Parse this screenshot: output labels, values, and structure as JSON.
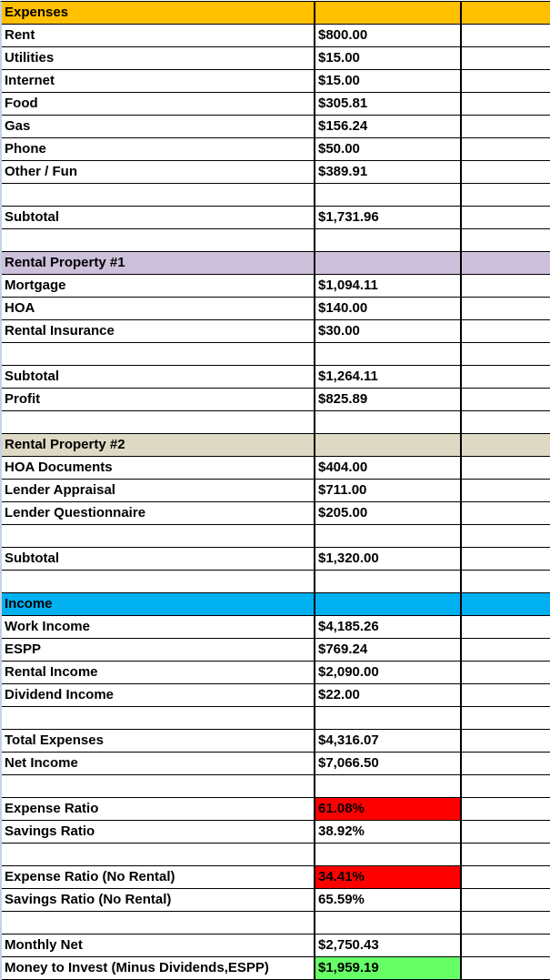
{
  "sheet": {
    "colors": {
      "expenses_header": "#ffc000",
      "rental1_header": "#ccc0da",
      "rental2_header": "#ddd9c4",
      "income_header": "#00b0f0",
      "warn": "#ff0000",
      "good": "#66ff66"
    },
    "rows": [
      {
        "label": "Expenses",
        "value": ""
      },
      {
        "label": "Rent",
        "value": "$800.00"
      },
      {
        "label": "Utilities",
        "value": "$15.00"
      },
      {
        "label": "Internet",
        "value": "$15.00"
      },
      {
        "label": "Food",
        "value": "$305.81"
      },
      {
        "label": "Gas",
        "value": "$156.24"
      },
      {
        "label": "Phone",
        "value": "$50.00"
      },
      {
        "label": "Other / Fun",
        "value": "$389.91"
      },
      {
        "label": "",
        "value": ""
      },
      {
        "label": "Subtotal",
        "value": "$1,731.96"
      },
      {
        "label": "",
        "value": ""
      },
      {
        "label": "Rental Property #1",
        "value": ""
      },
      {
        "label": "Mortgage",
        "value": "$1,094.11"
      },
      {
        "label": "HOA",
        "value": "$140.00"
      },
      {
        "label": "Rental Insurance",
        "value": "$30.00"
      },
      {
        "label": "",
        "value": ""
      },
      {
        "label": "Subtotal",
        "value": "$1,264.11"
      },
      {
        "label": "Profit",
        "value": "$825.89"
      },
      {
        "label": "",
        "value": ""
      },
      {
        "label": "Rental Property #2",
        "value": ""
      },
      {
        "label": "HOA Documents",
        "value": "$404.00"
      },
      {
        "label": "Lender Appraisal",
        "value": "$711.00"
      },
      {
        "label": "Lender Questionnaire",
        "value": "$205.00"
      },
      {
        "label": "",
        "value": ""
      },
      {
        "label": "Subtotal",
        "value": "$1,320.00"
      },
      {
        "label": "",
        "value": ""
      },
      {
        "label": "Income",
        "value": ""
      },
      {
        "label": "Work Income",
        "value": "$4,185.26"
      },
      {
        "label": "ESPP",
        "value": "$769.24"
      },
      {
        "label": "Rental Income",
        "value": "$2,090.00"
      },
      {
        "label": "Dividend Income",
        "value": "$22.00"
      },
      {
        "label": "",
        "value": ""
      },
      {
        "label": "Total Expenses",
        "value": "$4,316.07"
      },
      {
        "label": "Net Income",
        "value": "$7,066.50"
      },
      {
        "label": "",
        "value": ""
      },
      {
        "label": "Expense Ratio",
        "value": "61.08%"
      },
      {
        "label": "Savings Ratio",
        "value": "38.92%"
      },
      {
        "label": "",
        "value": ""
      },
      {
        "label": "Expense Ratio (No Rental)",
        "value": "34.41%"
      },
      {
        "label": "Savings Ratio (No Rental)",
        "value": "65.59%"
      },
      {
        "label": "",
        "value": ""
      },
      {
        "label": "Monthly Net",
        "value": "$2,750.43"
      },
      {
        "label": "Money to Invest (Minus Dividends,ESPP)",
        "value": "$1,959.19"
      }
    ]
  }
}
